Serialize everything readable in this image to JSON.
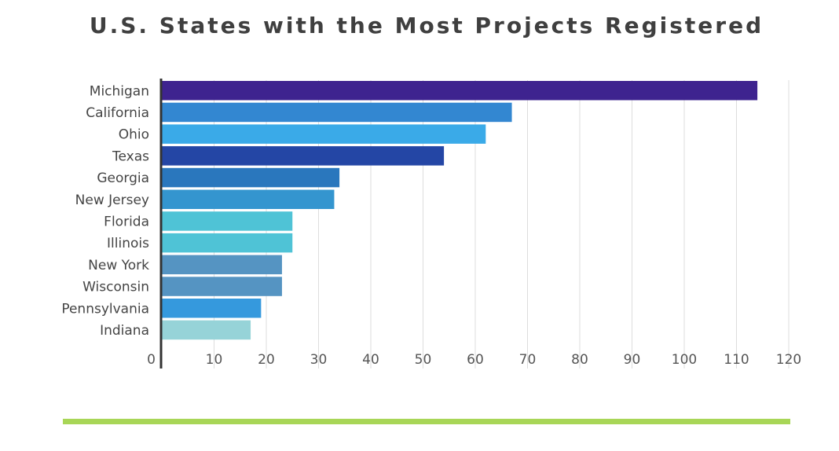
{
  "chart_data": {
    "type": "bar",
    "orientation": "horizontal",
    "title": "U.S. States with the Most Projects Registered",
    "categories": [
      "Michigan",
      "California",
      "Ohio",
      "Texas",
      "Georgia",
      "New Jersey",
      "Florida",
      "Illinois",
      "New York",
      "Wisconsin",
      "Pennsylvania",
      "Indiana"
    ],
    "values": [
      114,
      67,
      62,
      54,
      34,
      33,
      25,
      25,
      23,
      23,
      19,
      17
    ],
    "bar_colors": [
      "#3e238f",
      "#3387d1",
      "#3aaae8",
      "#2446a5",
      "#2a77bd",
      "#3495cf",
      "#4fc3d6",
      "#4fc3d6",
      "#5594c2",
      "#5594c2",
      "#3599dd",
      "#96d3d8"
    ],
    "xlim": [
      0,
      120
    ],
    "xticks": [
      0,
      10,
      20,
      30,
      40,
      50,
      60,
      70,
      80,
      90,
      100,
      110,
      120
    ],
    "xlabel": "",
    "ylabel": "",
    "grid": "vertical",
    "legend": "none"
  },
  "colors": {
    "title": "#3f3f3f",
    "grid": "#dddddd",
    "axis": "#333333",
    "footer_rule": "#a8d657"
  }
}
